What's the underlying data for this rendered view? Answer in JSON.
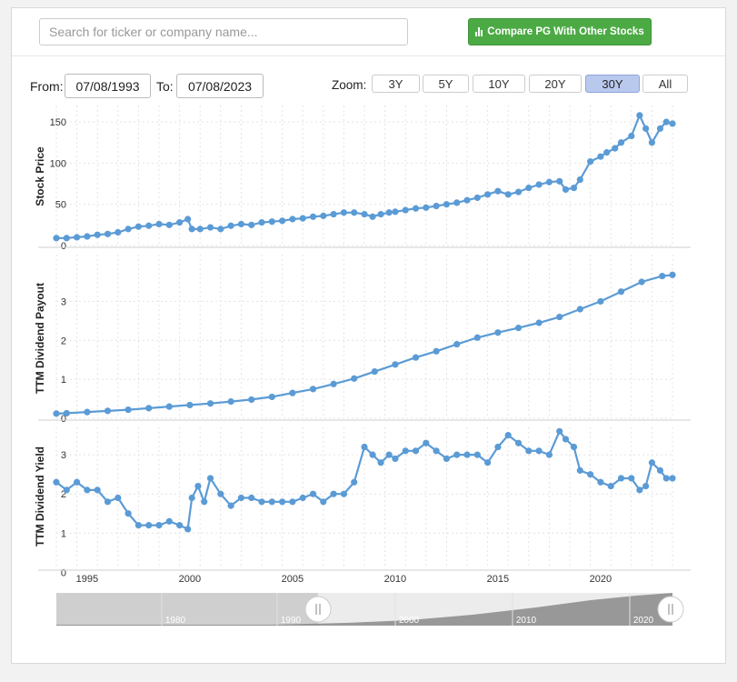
{
  "search": {
    "placeholder": "Search for ticker or company name..."
  },
  "compare_button": {
    "label": "Compare PG With Other Stocks",
    "color": "#4caa45"
  },
  "range": {
    "from_label": "From:",
    "from_value": "07/08/1993",
    "to_label": "To:",
    "to_value": "07/08/2023"
  },
  "zoom": {
    "label": "Zoom:",
    "buttons": [
      "3Y",
      "5Y",
      "10Y",
      "20Y",
      "30Y",
      "All"
    ],
    "active": "30Y"
  },
  "navigator": {
    "ticks": [
      "1980",
      "1990",
      "2000",
      "2010",
      "2020"
    ]
  },
  "x_ticks": [
    "1995",
    "2000",
    "2005",
    "2010",
    "2015",
    "2020"
  ],
  "series_color": "#5b9bd5",
  "chart_data": [
    {
      "type": "line",
      "ylabel": "Stock Price",
      "ylim": [
        0,
        170
      ],
      "yticks": [
        "0",
        "50",
        "100",
        "150"
      ],
      "x": [
        1993.5,
        1994,
        1994.5,
        1995,
        1995.5,
        1996,
        1996.5,
        1997,
        1997.5,
        1998,
        1998.5,
        1999,
        1999.5,
        1999.9,
        2000.1,
        2000.5,
        2001,
        2001.5,
        2002,
        2002.5,
        2003,
        2003.5,
        2004,
        2004.5,
        2005,
        2005.5,
        2006,
        2006.5,
        2007,
        2007.5,
        2008,
        2008.5,
        2008.9,
        2009.3,
        2009.7,
        2010,
        2010.5,
        2011,
        2011.5,
        2012,
        2012.5,
        2013,
        2013.5,
        2014,
        2014.5,
        2015,
        2015.5,
        2016,
        2016.5,
        2017,
        2017.5,
        2018,
        2018.3,
        2018.7,
        2019,
        2019.5,
        2020,
        2020.3,
        2020.7,
        2021,
        2021.5,
        2021.9,
        2022.2,
        2022.5,
        2022.9,
        2023.2,
        2023.5
      ],
      "values": [
        9,
        9,
        10,
        11,
        13,
        14,
        16,
        20,
        23,
        24,
        26,
        25,
        28,
        32,
        20,
        20,
        22,
        20,
        24,
        26,
        25,
        28,
        29,
        30,
        32,
        33,
        35,
        36,
        38,
        40,
        40,
        38,
        35,
        38,
        40,
        41,
        43,
        45,
        46,
        48,
        50,
        52,
        55,
        58,
        62,
        66,
        62,
        65,
        70,
        74,
        77,
        78,
        68,
        70,
        80,
        102,
        108,
        113,
        118,
        125,
        133,
        158,
        142,
        125,
        142,
        150,
        148
      ]
    },
    {
      "type": "line",
      "ylabel": "TTM Dividend Payout",
      "ylim": [
        0,
        4.2
      ],
      "yticks": [
        "0",
        "1",
        "2",
        "3"
      ],
      "x": [
        1993.5,
        1994,
        1995,
        1996,
        1997,
        1998,
        1999,
        2000,
        2001,
        2002,
        2003,
        2004,
        2005,
        2006,
        2007,
        2008,
        2009,
        2010,
        2011,
        2012,
        2013,
        2014,
        2015,
        2016,
        2017,
        2018,
        2019,
        2020,
        2021,
        2022,
        2023,
        2023.5
      ],
      "values": [
        0.12,
        0.13,
        0.16,
        0.19,
        0.22,
        0.26,
        0.3,
        0.34,
        0.38,
        0.43,
        0.48,
        0.55,
        0.65,
        0.75,
        0.88,
        1.02,
        1.2,
        1.38,
        1.56,
        1.72,
        1.9,
        2.07,
        2.2,
        2.32,
        2.45,
        2.6,
        2.8,
        3.0,
        3.25,
        3.5,
        3.65,
        3.68
      ]
    },
    {
      "type": "line",
      "ylabel": "TTM Dividend Yield",
      "ylim": [
        0.1,
        3.7
      ],
      "yticks": [
        "0",
        "1",
        "2",
        "3"
      ],
      "x": [
        1993.5,
        1994,
        1994.5,
        1995,
        1995.5,
        1996,
        1996.5,
        1997,
        1997.5,
        1998,
        1998.5,
        1999,
        1999.5,
        1999.9,
        2000.1,
        2000.4,
        2000.7,
        2001,
        2001.5,
        2002,
        2002.5,
        2003,
        2003.5,
        2004,
        2004.5,
        2005,
        2005.5,
        2006,
        2006.5,
        2007,
        2007.5,
        2008,
        2008.5,
        2008.9,
        2009.3,
        2009.7,
        2010,
        2010.5,
        2011,
        2011.5,
        2012,
        2012.5,
        2013,
        2013.5,
        2014,
        2014.5,
        2015,
        2015.5,
        2016,
        2016.5,
        2017,
        2017.5,
        2018,
        2018.3,
        2018.7,
        2019,
        2019.5,
        2020,
        2020.5,
        2021,
        2021.5,
        2021.9,
        2022.2,
        2022.5,
        2022.9,
        2023.2,
        2023.5
      ],
      "values": [
        2.3,
        2.1,
        2.3,
        2.1,
        2.1,
        1.8,
        1.9,
        1.5,
        1.2,
        1.2,
        1.2,
        1.3,
        1.2,
        1.1,
        1.9,
        2.2,
        1.8,
        2.4,
        2.0,
        1.7,
        1.9,
        1.9,
        1.8,
        1.8,
        1.8,
        1.8,
        1.9,
        2.0,
        1.8,
        2.0,
        2.0,
        2.3,
        3.2,
        3.0,
        2.8,
        3.0,
        2.9,
        3.1,
        3.1,
        3.3,
        3.1,
        2.9,
        3.0,
        3.0,
        3.0,
        2.8,
        3.2,
        3.5,
        3.3,
        3.1,
        3.1,
        3.0,
        3.6,
        3.4,
        3.2,
        2.6,
        2.5,
        2.3,
        2.2,
        2.4,
        2.4,
        2.1,
        2.2,
        2.8,
        2.6,
        2.4,
        2.4
      ]
    }
  ]
}
